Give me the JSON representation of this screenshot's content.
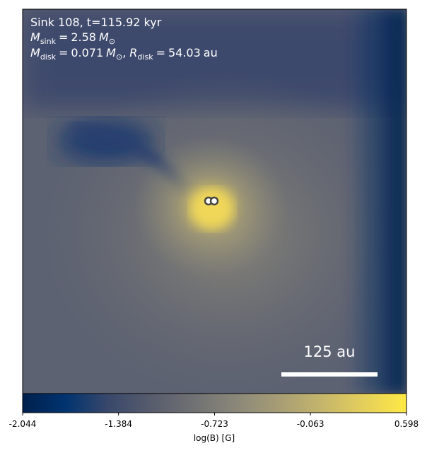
{
  "chart_data": {
    "type": "image",
    "title": "Sink 108, t=115.92 kyr",
    "sink_mass": {
      "symbol": "M",
      "subscript": "sink",
      "equals": "=",
      "value": 2.58,
      "unit": "M",
      "unit_subscript": "⊙"
    },
    "disk_mass": {
      "symbol": "M",
      "subscript": "disk",
      "equals": "=",
      "value": 0.071,
      "unit": "M",
      "unit_subscript": "⊙",
      "separator": ","
    },
    "disk_radius": {
      "symbol": "R",
      "subscript": "disk",
      "equals": "=",
      "value": 54.03,
      "unit": "au"
    },
    "scale_bar": {
      "label": "125 au"
    },
    "colorbar": {
      "label": "log(B) [G]",
      "lim": [
        -2.044,
        0.598
      ],
      "ticks": [
        -2.044,
        -1.384,
        -0.723,
        -0.063,
        0.598
      ],
      "colormap": "cividis",
      "colors": [
        "#00204c",
        "#00336f",
        "#39486b",
        "#575c6d",
        "#707173",
        "#8a8779",
        "#a69d75",
        "#c4b56c",
        "#e4cf5b",
        "#ffe945"
      ]
    }
  }
}
